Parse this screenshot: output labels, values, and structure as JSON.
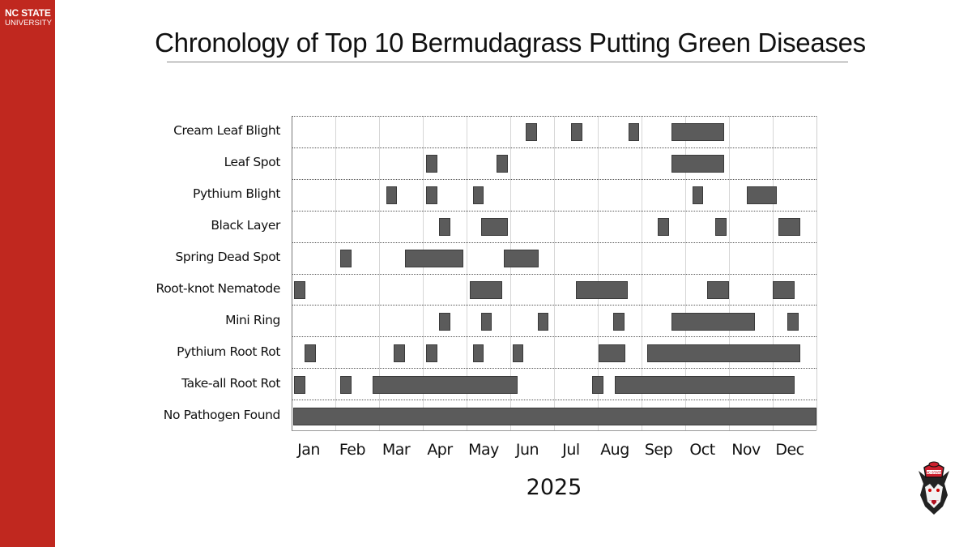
{
  "brand": {
    "line1": "NC STATE",
    "line2": "UNIVERSITY",
    "color": "#c0281f"
  },
  "slide": {
    "title": "Chronology of Top 10 Bermudagrass Putting Green Diseases"
  },
  "chart_data": {
    "type": "gantt",
    "title": "Chronology of Top 10 Bermudagrass Putting Green Diseases",
    "xlabel": "2025",
    "ylabel": "",
    "categories": [
      "Jan",
      "Feb",
      "Mar",
      "Apr",
      "May",
      "Jun",
      "Jul",
      "Aug",
      "Sep",
      "Oct",
      "Nov",
      "Dec"
    ],
    "x_range_months": [
      0,
      12
    ],
    "grid": {
      "vertical": "solid light gray per month",
      "horizontal": "dotted between rows"
    },
    "bar_color": "#5b5b5b",
    "series": [
      {
        "name": "Cream Leaf Blight",
        "intervals": [
          [
            5.33,
            5.6
          ],
          [
            6.37,
            6.63
          ],
          [
            7.68,
            7.93
          ],
          [
            8.67,
            9.87
          ]
        ]
      },
      {
        "name": "Leaf Spot",
        "intervals": [
          [
            3.06,
            3.31
          ],
          [
            4.67,
            4.93
          ],
          [
            8.67,
            9.87
          ]
        ]
      },
      {
        "name": "Pythium Blight",
        "intervals": [
          [
            2.15,
            2.39
          ],
          [
            3.06,
            3.31
          ],
          [
            4.13,
            4.37
          ],
          [
            9.15,
            9.39
          ],
          [
            10.39,
            11.07
          ]
        ]
      },
      {
        "name": "Black Layer",
        "intervals": [
          [
            3.35,
            3.61
          ],
          [
            4.31,
            4.93
          ],
          [
            8.35,
            8.61
          ],
          [
            9.67,
            9.93
          ],
          [
            11.11,
            11.61
          ]
        ]
      },
      {
        "name": "Spring Dead Spot",
        "intervals": [
          [
            1.09,
            1.35
          ],
          [
            2.57,
            3.91
          ],
          [
            4.83,
            5.63
          ]
        ]
      },
      {
        "name": "Root-knot Nematode",
        "intervals": [
          [
            0.04,
            0.3
          ],
          [
            4.06,
            4.8
          ],
          [
            6.48,
            7.67
          ],
          [
            9.48,
            9.98
          ],
          [
            10.98,
            11.48
          ]
        ]
      },
      {
        "name": "Mini Ring",
        "intervals": [
          [
            3.35,
            3.61
          ],
          [
            4.31,
            4.55
          ],
          [
            5.61,
            5.85
          ],
          [
            7.33,
            7.59
          ],
          [
            8.67,
            10.57
          ],
          [
            11.32,
            11.57
          ]
        ]
      },
      {
        "name": "Pythium Root Rot",
        "intervals": [
          [
            0.28,
            0.54
          ],
          [
            2.31,
            2.57
          ],
          [
            3.06,
            3.31
          ],
          [
            4.13,
            4.37
          ],
          [
            5.04,
            5.28
          ],
          [
            7.0,
            7.61
          ],
          [
            8.11,
            11.61
          ]
        ]
      },
      {
        "name": "Take-all Root Rot",
        "intervals": [
          [
            0.04,
            0.3
          ],
          [
            1.09,
            1.35
          ],
          [
            1.83,
            5.15
          ],
          [
            6.85,
            7.11
          ],
          [
            7.37,
            11.48
          ]
        ]
      },
      {
        "name": "No Pathogen Found",
        "intervals": [
          [
            0.02,
            11.98
          ]
        ]
      }
    ]
  },
  "axis": {
    "months": [
      "Jan",
      "Feb",
      "Mar",
      "Apr",
      "May",
      "Jun",
      "Jul",
      "Aug",
      "Sep",
      "Oct",
      "Nov",
      "Dec"
    ],
    "year": "2025"
  },
  "logo": {
    "name": "Tuffy wolf head mascot",
    "hat_text": "NC STATE"
  }
}
